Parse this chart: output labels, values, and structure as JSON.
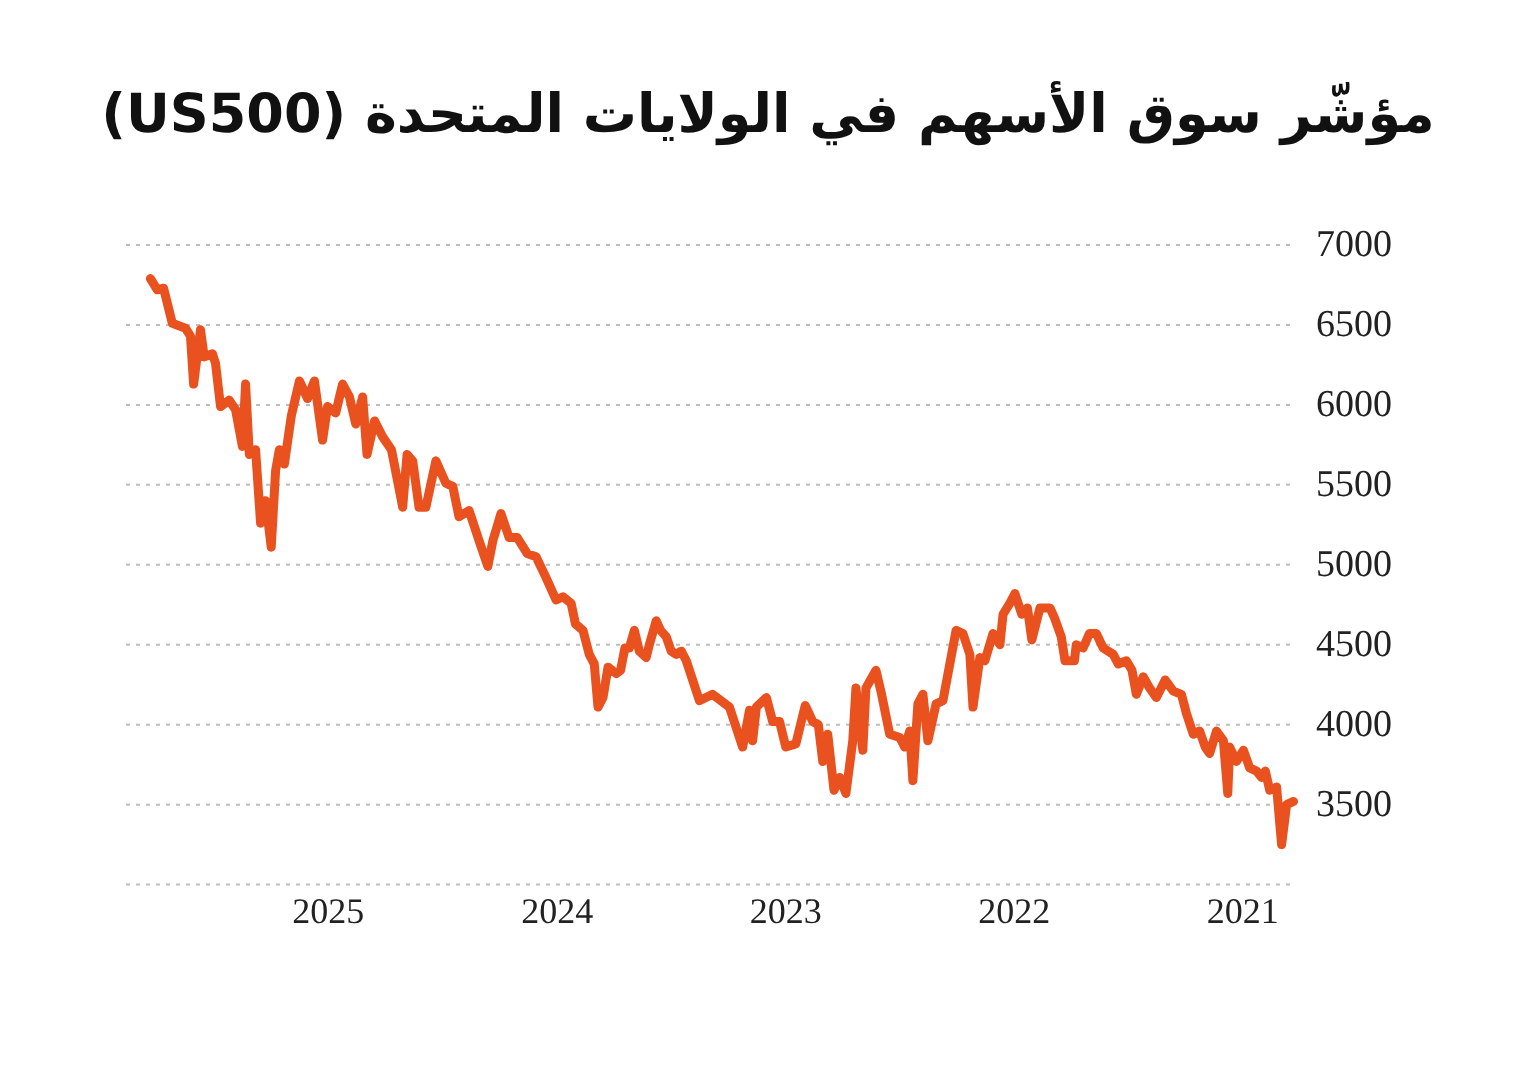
{
  "chart_data": {
    "type": "line",
    "title": "مؤشّر سوق الأسهم في الولايات المتحدة (US500)",
    "x": [
      "2020-10-12",
      "2020-10-23",
      "2020-10-31",
      "2020-11-08",
      "2020-11-19",
      "2020-11-26",
      "2020-12-02",
      "2020-12-10",
      "2020-12-21",
      "2020-12-31",
      "2021-01-11",
      "2021-01-22",
      "2021-01-25",
      "2021-02-01",
      "2021-02-12",
      "2021-02-23",
      "2021-03-02",
      "2021-03-11",
      "2021-03-21",
      "2021-04-01",
      "2021-04-09",
      "2021-04-22",
      "2021-05-05",
      "2021-05-19",
      "2021-05-30",
      "2021-06-09",
      "2021-06-20",
      "2021-06-27",
      "2021-07-06",
      "2021-07-19",
      "2021-07-27",
      "2021-08-12",
      "2021-08-23",
      "2021-09-03",
      "2021-09-13",
      "2021-09-24",
      "2021-09-27",
      "2021-10-12",
      "2021-10-18",
      "2021-10-29",
      "2021-11-05",
      "2021-11-21",
      "2021-12-04",
      "2021-12-11",
      "2021-12-20",
      "2021-12-31",
      "2022-01-08",
      "2022-01-19",
      "2022-01-24",
      "2022-02-04",
      "2022-02-17",
      "2022-02-25",
      "2022-03-08",
      "2022-03-13",
      "2022-03-24",
      "2022-04-04",
      "2022-04-25",
      "2022-05-06",
      "2022-05-19",
      "2022-05-27",
      "2022-06-04",
      "2022-06-12",
      "2022-06-17",
      "2022-06-25",
      "2022-07-03",
      "2022-07-19",
      "2022-08-01",
      "2022-08-10",
      "2022-08-26",
      "2022-08-31",
      "2022-09-11",
      "2022-09-16",
      "2022-09-27",
      "2022-10-07",
      "2022-10-16",
      "2022-10-26",
      "2022-11-03",
      "2022-11-10",
      "2022-11-19",
      "2022-12-01",
      "2022-12-16",
      "2023-01-01",
      "2023-01-11",
      "2023-01-22",
      "2023-02-01",
      "2023-02-17",
      "2023-02-23",
      "2023-02-28",
      "2023-03-11",
      "2023-04-01",
      "2023-04-28",
      "2023-05-19",
      "2023-06-09",
      "2023-06-17",
      "2023-06-25",
      "2023-07-03",
      "2023-07-11",
      "2023-07-20",
      "2023-07-27",
      "2023-08-07",
      "2023-08-12",
      "2023-08-23",
      "2023-08-31",
      "2023-09-08",
      "2023-09-15",
      "2023-09-22",
      "2023-09-29",
      "2023-10-12",
      "2023-10-20",
      "2023-10-28",
      "2023-11-03",
      "2023-11-11",
      "2023-11-21",
      "2023-12-03",
      "2023-12-10",
      "2023-12-23",
      "2024-01-03",
      "2024-01-19",
      "2024-02-04",
      "2024-02-18",
      "2024-03-05",
      "2024-03-18",
      "2024-03-31",
      "2024-04-13",
      "2024-04-21",
      "2024-05-05",
      "2024-05-21",
      "2024-06-06",
      "2024-06-16",
      "2024-06-27",
      "2024-07-13",
      "2024-07-29",
      "2024-08-09",
      "2024-08-19",
      "2024-08-28",
      "2024-09-04",
      "2024-09-22",
      "2024-10-06",
      "2024-10-19",
      "2024-10-31",
      "2024-11-07",
      "2024-11-18",
      "2024-11-28",
      "2024-12-09",
      "2024-12-20",
      "2025-01-02",
      "2025-01-10",
      "2025-01-23",
      "2025-02-03",
      "2025-02-16",
      "2025-03-01",
      "2025-03-12",
      "2025-03-20",
      "2025-03-26",
      "2025-04-02",
      "2025-04-11",
      "2025-04-19",
      "2025-04-27",
      "2025-05-07",
      "2025-05-13",
      "2025-05-18",
      "2025-05-29",
      "2025-06-08",
      "2025-06-22",
      "2025-06-30",
      "2025-07-05",
      "2025-07-18",
      "2025-07-24",
      "2025-08-04",
      "2025-08-09",
      "2025-08-17",
      "2025-09-07",
      "2025-09-21",
      "2025-10-01",
      "2025-10-12"
    ],
    "values": [
      3520,
      3500,
      3250,
      3610,
      3590,
      3710,
      3670,
      3710,
      3730,
      3840,
      3770,
      3860,
      3570,
      3900,
      3960,
      3820,
      3860,
      3960,
      3940,
      4070,
      4190,
      4210,
      4280,
      4170,
      4230,
      4300,
      4190,
      4340,
      4400,
      4380,
      4440,
      4480,
      4570,
      4570,
      4480,
      4500,
      4400,
      4400,
      4550,
      4670,
      4730,
      4730,
      4530,
      4730,
      4690,
      4820,
      4760,
      4690,
      4500,
      4570,
      4400,
      4420,
      4110,
      4440,
      4570,
      4590,
      4150,
      4130,
      3900,
      4190,
      4130,
      3650,
      3960,
      3860,
      3920,
      3940,
      4190,
      4340,
      4230,
      3840,
      4230,
      3900,
      3570,
      3670,
      3590,
      3940,
      3770,
      4000,
      4020,
      4120,
      3880,
      3860,
      4020,
      4020,
      4170,
      4110,
      3900,
      4090,
      3860,
      4110,
      4190,
      4150,
      4400,
      4460,
      4440,
      4460,
      4550,
      4590,
      4650,
      4500,
      4420,
      4460,
      4590,
      4480,
      4480,
      4340,
      4320,
      4360,
      4170,
      4110,
      4380,
      4440,
      4590,
      4630,
      4760,
      4800,
      4780,
      4920,
      5050,
      5070,
      5170,
      5170,
      5320,
      5150,
      4990,
      5150,
      5340,
      5300,
      5490,
      5510,
      5650,
      5360,
      5360,
      5650,
      5690,
      5360,
      5720,
      5800,
      5900,
      5690,
      6050,
      5880,
      6050,
      6130,
      5950,
      5990,
      5780,
      6150,
      6040,
      6150,
      5930,
      5630,
      5720,
      5590,
      5110,
      5400,
      5260,
      5720,
      5690,
      6130,
      5740,
      5970,
      6030,
      5990,
      6260,
      6320,
      6300,
      6470,
      6130,
      6430,
      6480,
      6510,
      6730,
      6720,
      6790
    ],
    "color": "#e9511f",
    "line_style": "solid",
    "xlim": [
      "2025-11-20",
      "2020-10-08"
    ],
    "xticks": [
      "2025",
      "2024",
      "2023",
      "2022",
      "2021"
    ],
    "ylim": [
      3000,
      7000
    ],
    "yticks": [
      {
        "value": 3000,
        "label": null
      },
      3500,
      4000,
      4500,
      5000,
      5500,
      6000,
      6500,
      7000
    ],
    "grid": "y"
  }
}
